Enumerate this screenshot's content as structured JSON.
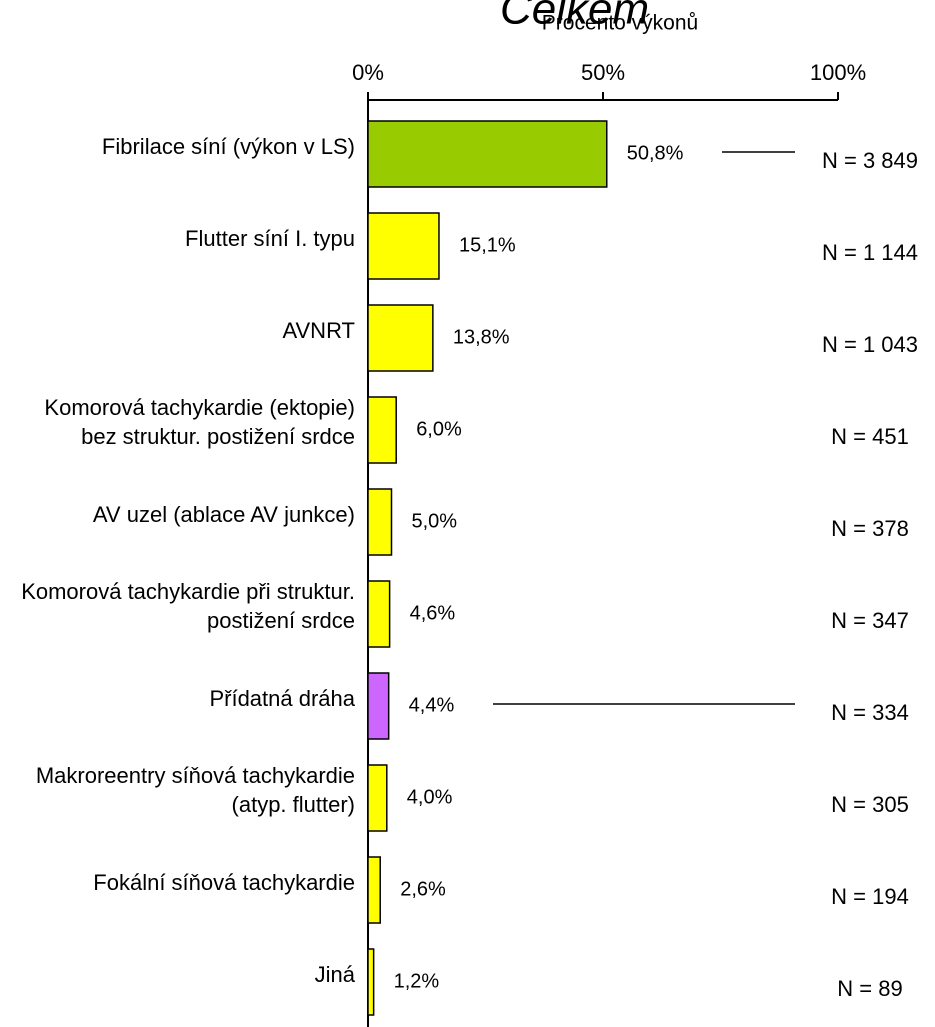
{
  "chart_data": {
    "type": "barh",
    "title": "Celkem",
    "xlabel": "Procento výkonů",
    "categories": [
      "Fibrilace síní (výkon v LS)",
      "Flutter síní I. typu",
      "AVNRT",
      "Komorová tachykardie (ektopie) bez struktur. postižení  srdce",
      "AV uzel (ablace AV junkce)",
      "Komorová tachykardie při struktur. postižení srdce",
      "Přídatná dráha",
      "Makroreentry síňová tachykardie (atyp. flutter)",
      "Fokální síňová tachykardie",
      "Jiná"
    ],
    "values": [
      50.8,
      15.1,
      13.8,
      6.0,
      5.0,
      4.6,
      4.4,
      4.0,
      2.6,
      1.2
    ],
    "value_labels": [
      "50,8%",
      "15,1%",
      "13,8%",
      "6,0%",
      "5,0%",
      "4,6%",
      "4,4%",
      "4,0%",
      "2,6%",
      "1,2%"
    ],
    "annotations": [
      "N = 3 849",
      "N = 1 144",
      "N = 1 043",
      "N = 451",
      "N = 378",
      "N = 347",
      "N = 334",
      "N = 305",
      "N = 194",
      "N = 89"
    ],
    "colors": [
      "#99cc00",
      "#ffff00",
      "#ffff00",
      "#ffff00",
      "#ffff00",
      "#ffff00",
      "#cc66ff",
      "#ffff00",
      "#ffff00",
      "#ffff00"
    ],
    "xlim": [
      0,
      100
    ],
    "xticks": [
      {
        "value": 0,
        "label": "0%"
      },
      {
        "value": 50,
        "label": "50%"
      },
      {
        "value": 100,
        "label": "100%"
      }
    ]
  }
}
